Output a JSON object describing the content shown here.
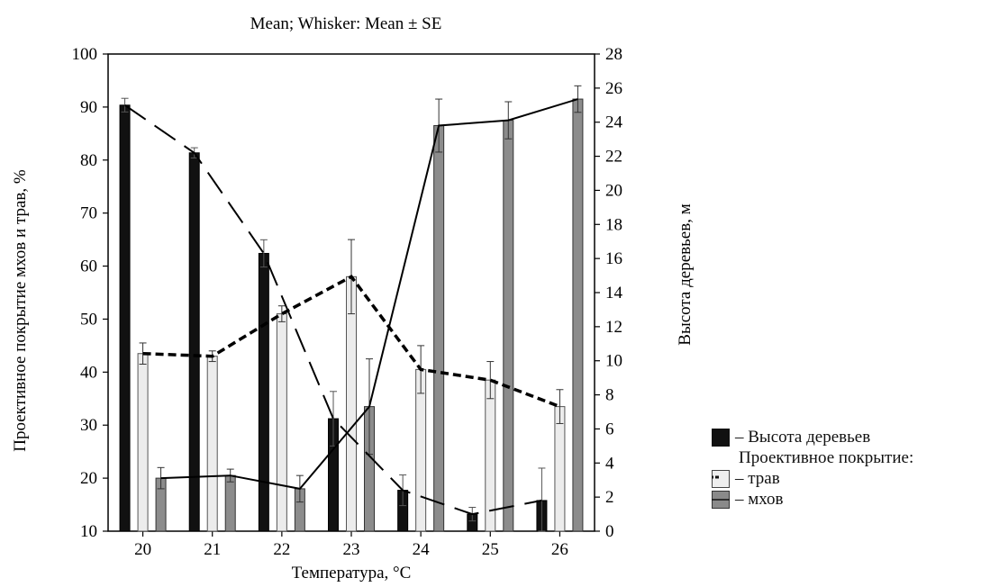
{
  "chart_data": {
    "type": "bar",
    "title": "Mean; Whisker: Mean ± SE",
    "xlabel": "Температура, °C",
    "ylabel_left": "Проективное покрытие мхов и трав, %",
    "ylabel_right": "Высота деревьев, м",
    "categories": [
      "20",
      "21",
      "22",
      "23",
      "24",
      "25",
      "26"
    ],
    "ylim_left": [
      10,
      100
    ],
    "ylim_right": [
      0,
      28
    ],
    "yticks_left": [
      "10",
      "20",
      "30",
      "40",
      "50",
      "60",
      "70",
      "80",
      "90",
      "100"
    ],
    "yticks_right": [
      "0",
      "2",
      "4",
      "6",
      "8",
      "10",
      "12",
      "14",
      "16",
      "18",
      "20",
      "22",
      "24",
      "26",
      "28"
    ],
    "grid": false,
    "series": [
      {
        "name": "Высота деревьев",
        "axis": "right",
        "style": "black-bar-longdash",
        "values": [
          25.0,
          22.2,
          16.3,
          6.6,
          2.4,
          1.0,
          1.8
        ],
        "se": [
          0.4,
          0.3,
          0.8,
          1.6,
          0.9,
          0.4,
          1.9
        ]
      },
      {
        "name": "трав",
        "axis": "left",
        "style": "light-bar-shortdash",
        "values": [
          43.5,
          43.0,
          51.0,
          58.0,
          40.5,
          38.5,
          33.5
        ],
        "se": [
          2.0,
          1.0,
          1.5,
          7.0,
          4.5,
          3.5,
          3.2
        ]
      },
      {
        "name": "мхов",
        "axis": "left",
        "style": "gray-bar-solid",
        "values": [
          20.0,
          20.5,
          18.0,
          33.5,
          86.5,
          87.5,
          91.5
        ],
        "se": [
          2.0,
          1.2,
          2.5,
          9.0,
          5.0,
          3.5,
          2.5
        ]
      }
    ]
  },
  "legend": {
    "trees": "– Высота деревьев",
    "cover_heading": "Проективное покрытие:",
    "grass": "– трав",
    "moss": "– мхов"
  }
}
